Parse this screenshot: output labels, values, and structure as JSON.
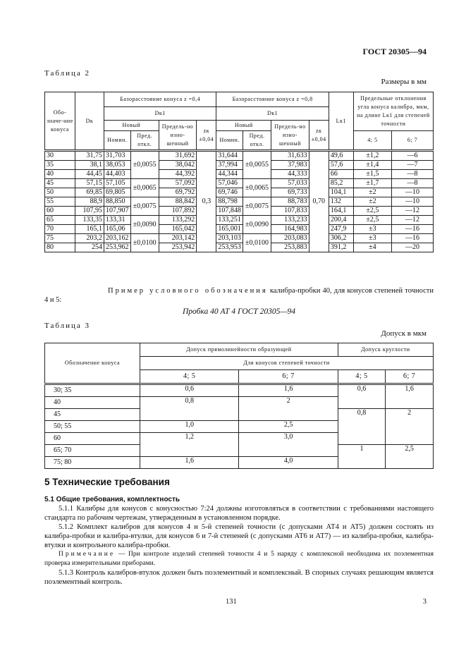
{
  "header": {
    "standard": "ГОСТ 20305—94"
  },
  "table2": {
    "caption": "Таблица 2",
    "units": "Размеры в мм",
    "headers": {
      "designation": "Обо-значе-ние конуса",
      "dk": "Dк",
      "base04": "Базорасстояние конуса z =0,4",
      "base08": "Базорасстояние конуса z =0,8",
      "dk1": "Dк1",
      "new": "Новый",
      "nom": "Номин.",
      "dev": "Пред. откл.",
      "worn": "Предель-но изно-шенный",
      "zk": "zк ±0,04",
      "lk1": "Lк1",
      "angle": "Предельные отклонения угла конуса калибра, мкм, на длине Lк1 для степеней точности",
      "g45": "4; 5",
      "g67": "6; 7"
    },
    "zk1": "0,3",
    "zk2": "0,70",
    "dev_groups": [
      {
        "value": "±0,0055",
        "rows": 3
      },
      {
        "value": "±0,0065",
        "rows": 2
      },
      {
        "value": "±0,0075",
        "rows": 2
      },
      {
        "value": "±0,0090",
        "rows": 2
      },
      {
        "value": "±0,0100",
        "rows": 2
      }
    ],
    "rows": [
      [
        "30",
        "31,75",
        "31,703",
        "31,692",
        "31,644",
        "31,633",
        "49,6",
        "±1,2",
        "—6"
      ],
      [
        "35",
        "38,1",
        "38,053",
        "38,042",
        "37,994",
        "37,983",
        "57,6",
        "±1,4",
        "—7"
      ],
      [
        "40",
        "44,45",
        "44,403",
        "44,392",
        "44,344",
        "44,333",
        "66",
        "±1,5",
        "—8"
      ],
      [
        "45",
        "57,15",
        "57,105",
        "57,092",
        "57,046",
        "57,033",
        "85,2",
        "±1,7",
        "—8"
      ],
      [
        "50",
        "69,85",
        "69,805",
        "69,792",
        "69,746",
        "69,733",
        "104,1",
        "±2",
        "—10"
      ],
      [
        "55",
        "88,9",
        "88,850",
        "88,842",
        "88,798",
        "88,783",
        "132",
        "±2",
        "—10"
      ],
      [
        "60",
        "107,95",
        "107,907",
        "107,892",
        "107,848",
        "107,833",
        "164,1",
        "±2,5",
        "—12"
      ],
      [
        "65",
        "133,35",
        "133,31",
        "133,292",
        "133,251",
        "133,233",
        "200,4",
        "±2,5",
        "—12"
      ],
      [
        "70",
        "165,1",
        "165,06",
        "165,042",
        "165,001",
        "164,983",
        "247,9",
        "±3",
        "—16"
      ],
      [
        "75",
        "203,2",
        "203,162",
        "203,142",
        "203,103",
        "203,083",
        "306,2",
        "±3",
        "—16"
      ],
      [
        "80",
        "254",
        "253,962",
        "253,942",
        "253,953",
        "253,883",
        "391,2",
        "±4",
        "—20"
      ]
    ]
  },
  "example": {
    "text1": "Пример условного обозначения",
    "text2": " калибра-пробки 40, для конусов степеней точности 4 и 5:",
    "designation": "Пробка 40 АТ 4 ГОСТ 20305—94"
  },
  "table3": {
    "caption": "Таблица 3",
    "units": "Допуск в мкм",
    "headers": {
      "designation": "Обозначение конуса",
      "straight": "Допуск прямолинейности образующей",
      "round": "Допуск круглости",
      "for": "Для конусов степеней точности",
      "g45": "4; 5",
      "g67": "6; 7"
    },
    "names": [
      "30; 35",
      "40",
      "45",
      "50; 55",
      "60",
      "65; 70",
      "75; 80"
    ],
    "straight": [
      [
        "0,6",
        "1,6"
      ],
      [
        "0,8",
        "2"
      ],
      [
        "1,0",
        "2,5"
      ],
      [
        "1,2",
        "3,0"
      ],
      [
        "1,6",
        "4,0"
      ]
    ],
    "round": [
      [
        "0,6",
        "1,6"
      ],
      [
        "0,8",
        "2"
      ],
      [
        "1",
        "2,5"
      ]
    ]
  },
  "section": {
    "title": "5 Технические требования",
    "sub": "5.1 Общие требования, комплектность",
    "p1": "5.1.1 Калибры для конусов с конусностью 7:24 должны изготовляться в соответствии с требованиями настоящего стандарта по рабочим чертежам, утвержденным в установленном порядке.",
    "p2": "5.1.2 Комплект калибров для конусов 4 и 5-й степеней точности (с допусками АТ4 и АТ5) должен состоять из калибра-пробки и калибра-втулки, для конусов 6 и 7-й степеней (с допусками АТ6 и АТ7) — из калибра-пробки, калибра-втулки и контрольного калибра-пробки.",
    "note_label": "Примечание",
    "note": " — При контроле изделий степеней точности 4 и 5 наряду с комплексной необходима их поэлементная проверка измерительными приборами.",
    "p3": "5.1.3 Контроль калибров-втулок должен быть поэлементный и комплексный. В спорных случаях решающим является поэлементный контроль."
  },
  "footer": {
    "page": "131",
    "sheet": "3"
  }
}
